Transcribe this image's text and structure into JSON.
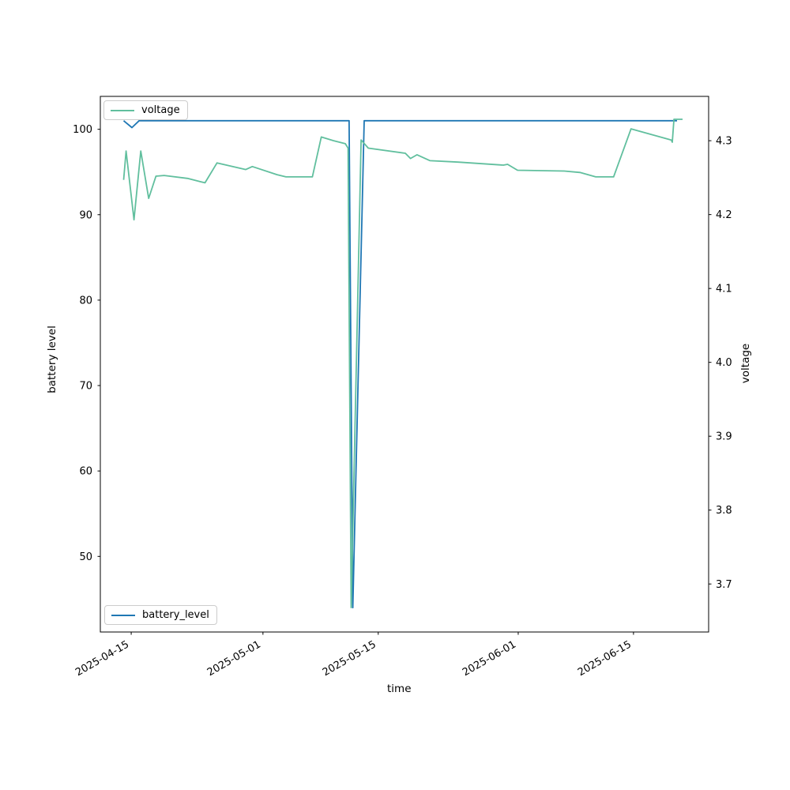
{
  "figure": {
    "background": "#ffffff"
  },
  "x_axis": {
    "label": "time",
    "tick_labels": [
      "2025-04-15",
      "2025-05-01",
      "2025-05-15",
      "2025-06-01",
      "2025-06-15"
    ],
    "tick_rotation_deg": 30
  },
  "y_left": {
    "label": "battery level",
    "tick_labels": [
      "50",
      "60",
      "70",
      "80",
      "90",
      "100"
    ]
  },
  "y_right": {
    "label": "voltage",
    "tick_labels": [
      "3.7",
      "3.8",
      "3.9",
      "4.0",
      "4.1",
      "4.2",
      "4.3"
    ]
  },
  "legends": {
    "top": {
      "label": "voltage",
      "color": "#61bf9e",
      "position": "upper left"
    },
    "bottom": {
      "label": "battery_level",
      "color": "#1f77b4",
      "position": "lower left"
    }
  },
  "chart_data": {
    "type": "line",
    "xlabel": "time",
    "ylabel_left": "battery level",
    "ylabel_right": "voltage",
    "grid": false,
    "axes": {
      "x": {
        "min": "2025-04-11T06:00",
        "max": "2025-06-24T03:00",
        "ticks": [
          "2025-04-15",
          "2025-05-01",
          "2025-05-15",
          "2025-06-01",
          "2025-06-15"
        ]
      },
      "y_left": {
        "min": 41.15,
        "max": 103.85,
        "ticks": [
          50,
          60,
          70,
          80,
          90,
          100
        ]
      },
      "y_right": {
        "min": 3.635,
        "max": 4.36,
        "ticks": [
          3.7,
          3.8,
          3.9,
          4.0,
          4.1,
          4.2,
          4.3
        ]
      }
    },
    "series": [
      {
        "name": "battery_level",
        "axis": "left",
        "color": "#1f77b4",
        "points": [
          [
            "2025-04-14T02:00",
            101
          ],
          [
            "2025-04-15T02:00",
            100.2
          ],
          [
            "2025-04-15T23:00",
            101
          ],
          [
            "2025-05-11T11:00",
            101
          ],
          [
            "2025-05-11T22:00",
            44
          ],
          [
            "2025-05-13T07:00",
            101
          ],
          [
            "2025-06-20T07:00",
            101
          ]
        ]
      },
      {
        "name": "voltage",
        "axis": "right",
        "color": "#61bf9e",
        "points": [
          [
            "2025-04-14T02:00",
            4.247
          ],
          [
            "2025-04-14T09:00",
            4.286
          ],
          [
            "2025-04-15T08:00",
            4.193
          ],
          [
            "2025-04-16T04:00",
            4.286
          ],
          [
            "2025-04-17T03:00",
            4.222
          ],
          [
            "2025-04-18T00:00",
            4.252
          ],
          [
            "2025-04-19T00:00",
            4.253
          ],
          [
            "2025-04-21T20:00",
            4.249
          ],
          [
            "2025-04-23T23:00",
            4.243
          ],
          [
            "2025-04-25T10:00",
            4.27
          ],
          [
            "2025-04-28T22:00",
            4.261
          ],
          [
            "2025-04-29T17:00",
            4.265
          ],
          [
            "2025-05-02T17:00",
            4.254
          ],
          [
            "2025-05-03T19:00",
            4.251
          ],
          [
            "2025-05-07T00:00",
            4.251
          ],
          [
            "2025-05-08T02:00",
            4.305
          ],
          [
            "2025-05-09T14:00",
            4.3
          ],
          [
            "2025-05-11T00:00",
            4.296
          ],
          [
            "2025-05-11T08:00",
            4.29
          ],
          [
            "2025-05-11T17:00",
            3.668
          ],
          [
            "2025-05-12T22:00",
            4.301
          ],
          [
            "2025-05-13T19:00",
            4.29
          ],
          [
            "2025-05-18T07:00",
            4.283
          ],
          [
            "2025-05-18T22:00",
            4.276
          ],
          [
            "2025-05-19T17:00",
            4.281
          ],
          [
            "2025-05-21T07:00",
            4.273
          ],
          [
            "2025-05-24T17:00",
            4.271
          ],
          [
            "2025-05-30T05:00",
            4.267
          ],
          [
            "2025-05-30T17:00",
            4.268
          ],
          [
            "2025-05-31T22:00",
            4.26
          ],
          [
            "2025-06-06T14:00",
            4.259
          ],
          [
            "2025-06-08T12:00",
            4.257
          ],
          [
            "2025-06-10T10:00",
            4.251
          ],
          [
            "2025-06-12T14:00",
            4.251
          ],
          [
            "2025-06-14T17:00",
            4.316
          ],
          [
            "2025-06-19T14:00",
            4.301
          ],
          [
            "2025-06-19T17:00",
            4.298
          ],
          [
            "2025-06-19T22:00",
            4.329
          ],
          [
            "2025-06-20T23:00",
            4.329
          ]
        ]
      }
    ]
  }
}
